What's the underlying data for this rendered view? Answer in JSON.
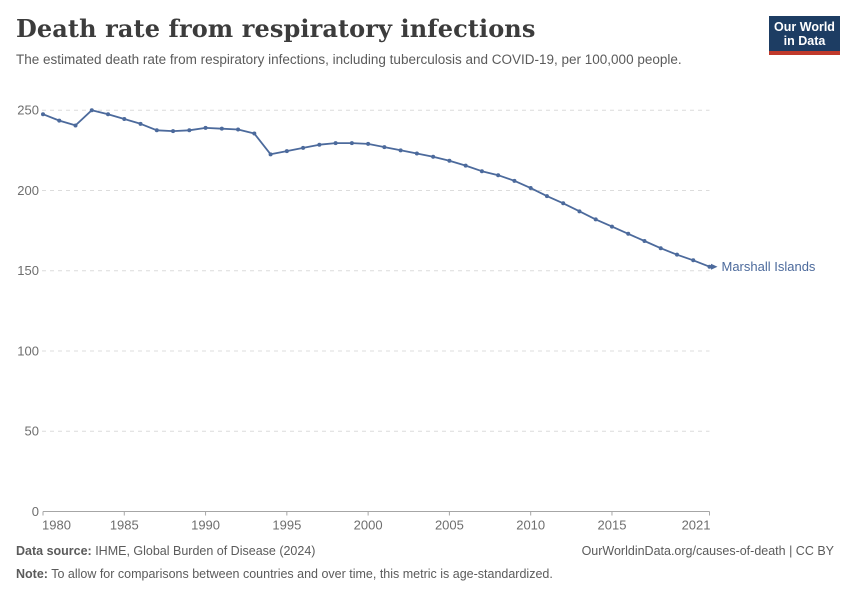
{
  "logo": {
    "line1": "Our World",
    "line2": "in Data",
    "bg_color": "#1d3d63",
    "stripe_color": "#c0392b",
    "text_color": "#ffffff"
  },
  "chart_data": {
    "type": "line",
    "title": "Death rate from respiratory infections",
    "subtitle": "The estimated death rate from respiratory infections, including tuberculosis and COVID-19, per 100,000 people.",
    "xlabel": "",
    "ylabel": "",
    "xlim": [
      1980,
      2021
    ],
    "ylim": [
      0,
      250
    ],
    "xticks": [
      1980,
      1985,
      1990,
      1995,
      2000,
      2005,
      2010,
      2015,
      2021
    ],
    "yticks": [
      0,
      50,
      100,
      150,
      200,
      250
    ],
    "grid": "horizontal-dashed",
    "legend": "end-of-line-label",
    "series": [
      {
        "name": "Marshall Islands",
        "color": "#4C6A9C",
        "x": [
          1980,
          1981,
          1982,
          1983,
          1984,
          1985,
          1986,
          1987,
          1988,
          1989,
          1990,
          1991,
          1992,
          1993,
          1994,
          1995,
          1996,
          1997,
          1998,
          1999,
          2000,
          2001,
          2002,
          2003,
          2004,
          2005,
          2006,
          2007,
          2008,
          2009,
          2010,
          2011,
          2012,
          2013,
          2014,
          2015,
          2016,
          2017,
          2018,
          2019,
          2020,
          2021
        ],
        "values": [
          247.5,
          243.5,
          240.5,
          250,
          247.5,
          244.5,
          241.5,
          237.5,
          237,
          237.5,
          239,
          238.5,
          238,
          235.5,
          222.5,
          224.5,
          226.5,
          228.5,
          229.5,
          229.5,
          229,
          227,
          225,
          223,
          221,
          218.5,
          215.5,
          212,
          209.5,
          206,
          201.5,
          196.5,
          192,
          187,
          182,
          177.5,
          173,
          168.5,
          164,
          160,
          156.5,
          152.5
        ]
      }
    ],
    "styles": {
      "gridline_color": "#dcdcdc",
      "axis_color": "#a6a6a6",
      "tick_label_color": "#6e6e6e"
    }
  },
  "footer": {
    "datasource_label": "Data source:",
    "datasource_text": " IHME, Global Burden of Disease (2024)",
    "attribution": "OurWorldinData.org/causes-of-death | CC BY",
    "note_label": "Note:",
    "note_text": " To allow for comparisons between countries and over time, this metric is age-standardized."
  }
}
